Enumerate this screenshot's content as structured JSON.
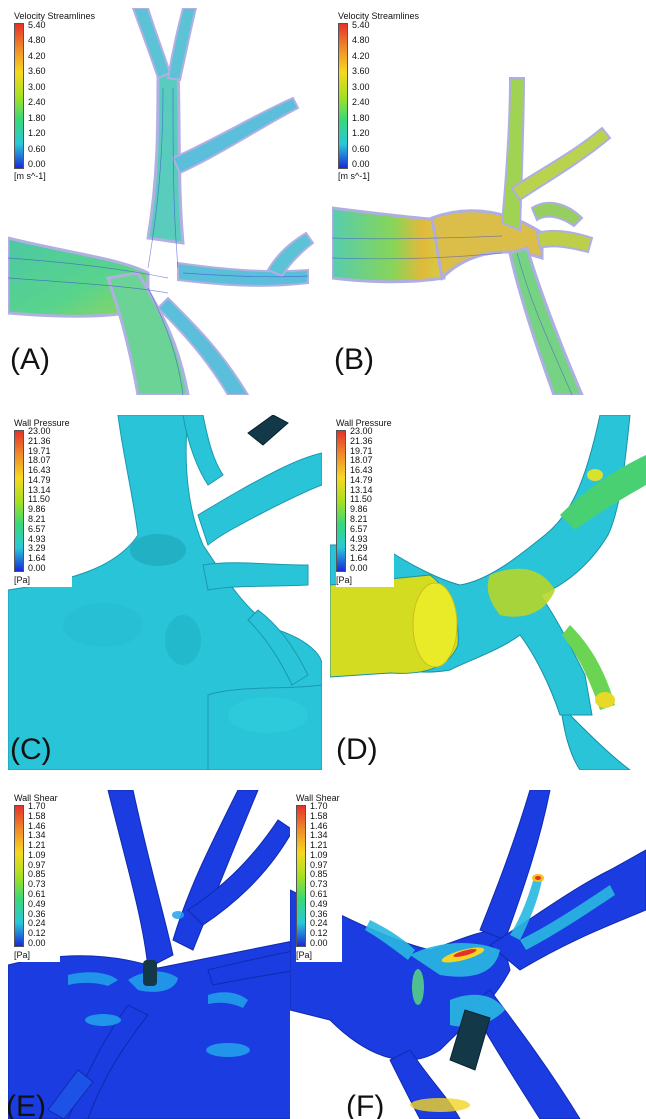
{
  "panels": {
    "A": {
      "letter": "(A)",
      "legend": {
        "title": "Velocity Streamlines",
        "ticks": [
          "5.40",
          "4.80",
          "4.20",
          "3.60",
          "3.00",
          "2.40",
          "1.80",
          "1.20",
          "0.60",
          "0.00"
        ],
        "unit": "[m s^-1]"
      }
    },
    "B": {
      "letter": "(B)",
      "legend": {
        "title": "Velocity Streamlines",
        "ticks": [
          "5.40",
          "4.80",
          "4.20",
          "3.60",
          "3.00",
          "2.40",
          "1.80",
          "1.20",
          "0.60",
          "0.00"
        ],
        "unit": "[m s^-1]"
      }
    },
    "C": {
      "letter": "(C)",
      "legend": {
        "title": "Wall Pressure",
        "ticks": [
          "23.00",
          "21.36",
          "19.71",
          "18.07",
          "16.43",
          "14.79",
          "13.14",
          "11.50",
          "9.86",
          "8.21",
          "6.57",
          "4.93",
          "3.29",
          "1.64",
          "0.00"
        ],
        "unit": "[Pa]"
      }
    },
    "D": {
      "letter": "(D)",
      "legend": {
        "title": "Wall Pressure",
        "ticks": [
          "23.00",
          "21.36",
          "19.71",
          "18.07",
          "16.43",
          "14.79",
          "13.14",
          "11.50",
          "9.86",
          "8.21",
          "6.57",
          "4.93",
          "3.29",
          "1.64",
          "0.00"
        ],
        "unit": "[Pa]"
      }
    },
    "E": {
      "letter": "(E)",
      "legend": {
        "title": "Wall Shear",
        "ticks": [
          "1.70",
          "1.58",
          "1.46",
          "1.34",
          "1.21",
          "1.09",
          "0.97",
          "0.85",
          "0.73",
          "0.61",
          "0.49",
          "0.36",
          "0.24",
          "0.12",
          "0.00"
        ],
        "unit": "[Pa]"
      }
    },
    "F": {
      "letter": "(F)",
      "legend": {
        "title": "Wall Shear",
        "ticks": [
          "1.70",
          "1.58",
          "1.46",
          "1.34",
          "1.21",
          "1.09",
          "0.97",
          "0.85",
          "0.73",
          "0.61",
          "0.49",
          "0.36",
          "0.24",
          "0.12",
          "0.00"
        ],
        "unit": "[Pa]"
      }
    }
  },
  "colors": {
    "colormap_top": "#e4322a",
    "colormap_mid_high": "#f7d81f",
    "colormap_mid": "#38d87a",
    "colormap_mid_low": "#29c8d8",
    "colormap_bottom": "#1a2ad8",
    "vessel_cyan": "#29c8d8",
    "vessel_blue": "#1a3ce0",
    "vessel_yellow": "#e4d41c"
  }
}
